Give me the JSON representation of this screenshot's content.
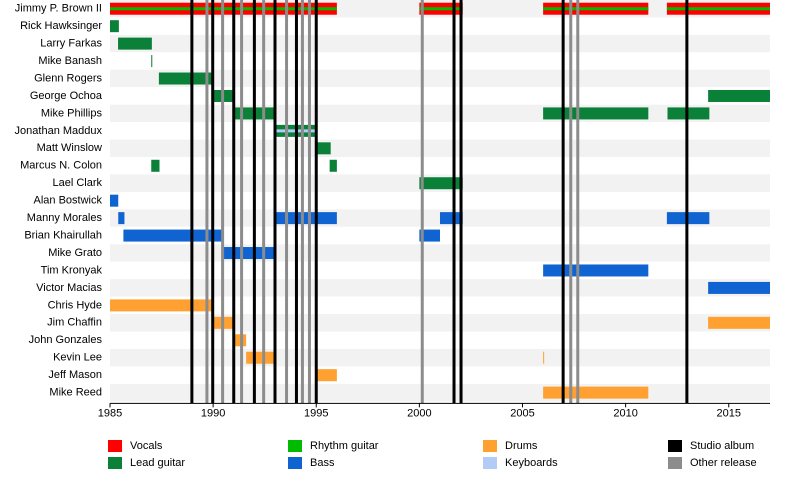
{
  "chart_data": {
    "type": "timeline",
    "xlim": [
      1985,
      2017
    ],
    "xticks": [
      1985,
      1990,
      1995,
      2000,
      2005,
      2010,
      2015
    ],
    "roles": [
      {
        "name": "Vocals",
        "color": "#ff0000"
      },
      {
        "name": "Lead guitar",
        "color": "#0a8038"
      },
      {
        "name": "Rhythm guitar",
        "color": "#00bb00"
      },
      {
        "name": "Bass",
        "color": "#1064d2"
      },
      {
        "name": "Drums",
        "color": "#ffa030"
      },
      {
        "name": "Keyboards",
        "color": "#b3ccf5"
      }
    ],
    "events": [
      {
        "name": "Studio album",
        "color": "#000000",
        "x": [
          1988.97,
          1989.98,
          1991.0,
          1992.0,
          1993.0,
          1994.04,
          1995.0,
          2001.68,
          2002.02,
          2006.97,
          2012.97
        ]
      },
      {
        "name": "Other release",
        "color": "#8c8c8c",
        "x": [
          1989.7,
          1990.46,
          1991.38,
          1992.45,
          1993.56,
          1994.33,
          1994.67,
          2000.14,
          2007.34,
          2007.68
        ]
      }
    ],
    "members": [
      {
        "name": "Jimmy P. Brown II",
        "periods": [
          {
            "role": "Vocals",
            "start": 1985,
            "end": 1996
          },
          {
            "role": "Vocals",
            "start": 2000,
            "end": 2002.1
          },
          {
            "role": "Vocals",
            "start": 2006,
            "end": 2011.1
          },
          {
            "role": "Vocals",
            "start": 2012,
            "end": 2017
          },
          {
            "role": "Rhythm guitar",
            "start": 1985,
            "end": 1996
          },
          {
            "role": "Rhythm guitar",
            "start": 2000,
            "end": 2002.1
          },
          {
            "role": "Rhythm guitar",
            "start": 2006,
            "end": 2011.1
          },
          {
            "role": "Rhythm guitar",
            "start": 2012,
            "end": 2017
          }
        ]
      },
      {
        "name": "Rick Hawksinger",
        "periods": [
          {
            "role": "Lead guitar",
            "start": 1985,
            "end": 1985.43
          }
        ]
      },
      {
        "name": "Larry Farkas",
        "periods": [
          {
            "role": "Lead guitar",
            "start": 1985.39,
            "end": 1987.03
          }
        ]
      },
      {
        "name": "Mike Banash",
        "periods": [
          {
            "role": "Lead guitar",
            "start": 1987.0,
            "end": 1987.05
          }
        ]
      },
      {
        "name": "Glenn Rogers",
        "periods": [
          {
            "role": "Lead guitar",
            "start": 1987.37,
            "end": 1990.0
          }
        ]
      },
      {
        "name": "George Ochoa",
        "periods": [
          {
            "role": "Lead guitar",
            "start": 1990.0,
            "end": 1991.0
          },
          {
            "role": "Lead guitar",
            "start": 2014.0,
            "end": 2017
          }
        ]
      },
      {
        "name": "Mike Phillips",
        "periods": [
          {
            "role": "Lead guitar",
            "start": 1991.0,
            "end": 1993.0
          },
          {
            "role": "Lead guitar",
            "start": 2006.0,
            "end": 2011.1
          },
          {
            "role": "Lead guitar",
            "start": 2012.03,
            "end": 2014.06
          }
        ]
      },
      {
        "name": "Jonathan Maddux",
        "periods": [
          {
            "role": "Lead guitar",
            "start": 1993.0,
            "end": 1995.0
          },
          {
            "role": "Keyboards",
            "start": 1993.0,
            "end": 1995.0
          }
        ]
      },
      {
        "name": "Matt Winslow",
        "periods": [
          {
            "role": "Lead guitar",
            "start": 1995.0,
            "end": 1995.7
          }
        ]
      },
      {
        "name": "Marcus N. Colon",
        "periods": [
          {
            "role": "Lead guitar",
            "start": 1987.0,
            "end": 1987.4
          },
          {
            "role": "Lead guitar",
            "start": 1995.65,
            "end": 1996.0
          }
        ]
      },
      {
        "name": "Lael Clark",
        "periods": [
          {
            "role": "Lead guitar",
            "start": 2000.0,
            "end": 2002.1
          }
        ]
      },
      {
        "name": "Alan Bostwick",
        "periods": [
          {
            "role": "Bass",
            "start": 1985,
            "end": 1985.4
          }
        ]
      },
      {
        "name": "Manny Morales",
        "periods": [
          {
            "role": "Bass",
            "start": 1985.4,
            "end": 1985.7
          },
          {
            "role": "Bass",
            "start": 1993.0,
            "end": 1996.0
          },
          {
            "role": "Bass",
            "start": 2001.0,
            "end": 2002.1
          },
          {
            "role": "Bass",
            "start": 2012.0,
            "end": 2014.06
          }
        ]
      },
      {
        "name": "Brian Khairullah",
        "periods": [
          {
            "role": "Bass",
            "start": 1985.65,
            "end": 1990.46
          },
          {
            "role": "Bass",
            "start": 2000.0,
            "end": 2001.0
          }
        ]
      },
      {
        "name": "Mike Grato",
        "periods": [
          {
            "role": "Bass",
            "start": 1990.46,
            "end": 1993.0
          }
        ]
      },
      {
        "name": "Tim Kronyak",
        "periods": [
          {
            "role": "Bass",
            "start": 2006.0,
            "end": 2011.1
          }
        ]
      },
      {
        "name": "Victor Macias",
        "periods": [
          {
            "role": "Bass",
            "start": 2014.0,
            "end": 2017
          }
        ]
      },
      {
        "name": "Chris Hyde",
        "periods": [
          {
            "role": "Drums",
            "start": 1985,
            "end": 1990.0
          }
        ]
      },
      {
        "name": "Jim Chaffin",
        "periods": [
          {
            "role": "Drums",
            "start": 1990.0,
            "end": 1991.0
          },
          {
            "role": "Drums",
            "start": 2014.0,
            "end": 2017
          }
        ]
      },
      {
        "name": "John Gonzales",
        "periods": [
          {
            "role": "Drums",
            "start": 1991.0,
            "end": 1991.6
          }
        ]
      },
      {
        "name": "Kevin Lee",
        "periods": [
          {
            "role": "Drums",
            "start": 1991.6,
            "end": 1993.0
          },
          {
            "role": "Drums",
            "start": 2006.0,
            "end": 2006.05
          }
        ]
      },
      {
        "name": "Jeff Mason",
        "periods": [
          {
            "role": "Drums",
            "start": 1995.0,
            "end": 1996.0
          }
        ]
      },
      {
        "name": "Mike Reed",
        "periods": [
          {
            "role": "Drums",
            "start": 2006.0,
            "end": 2011.1
          }
        ]
      }
    ]
  }
}
